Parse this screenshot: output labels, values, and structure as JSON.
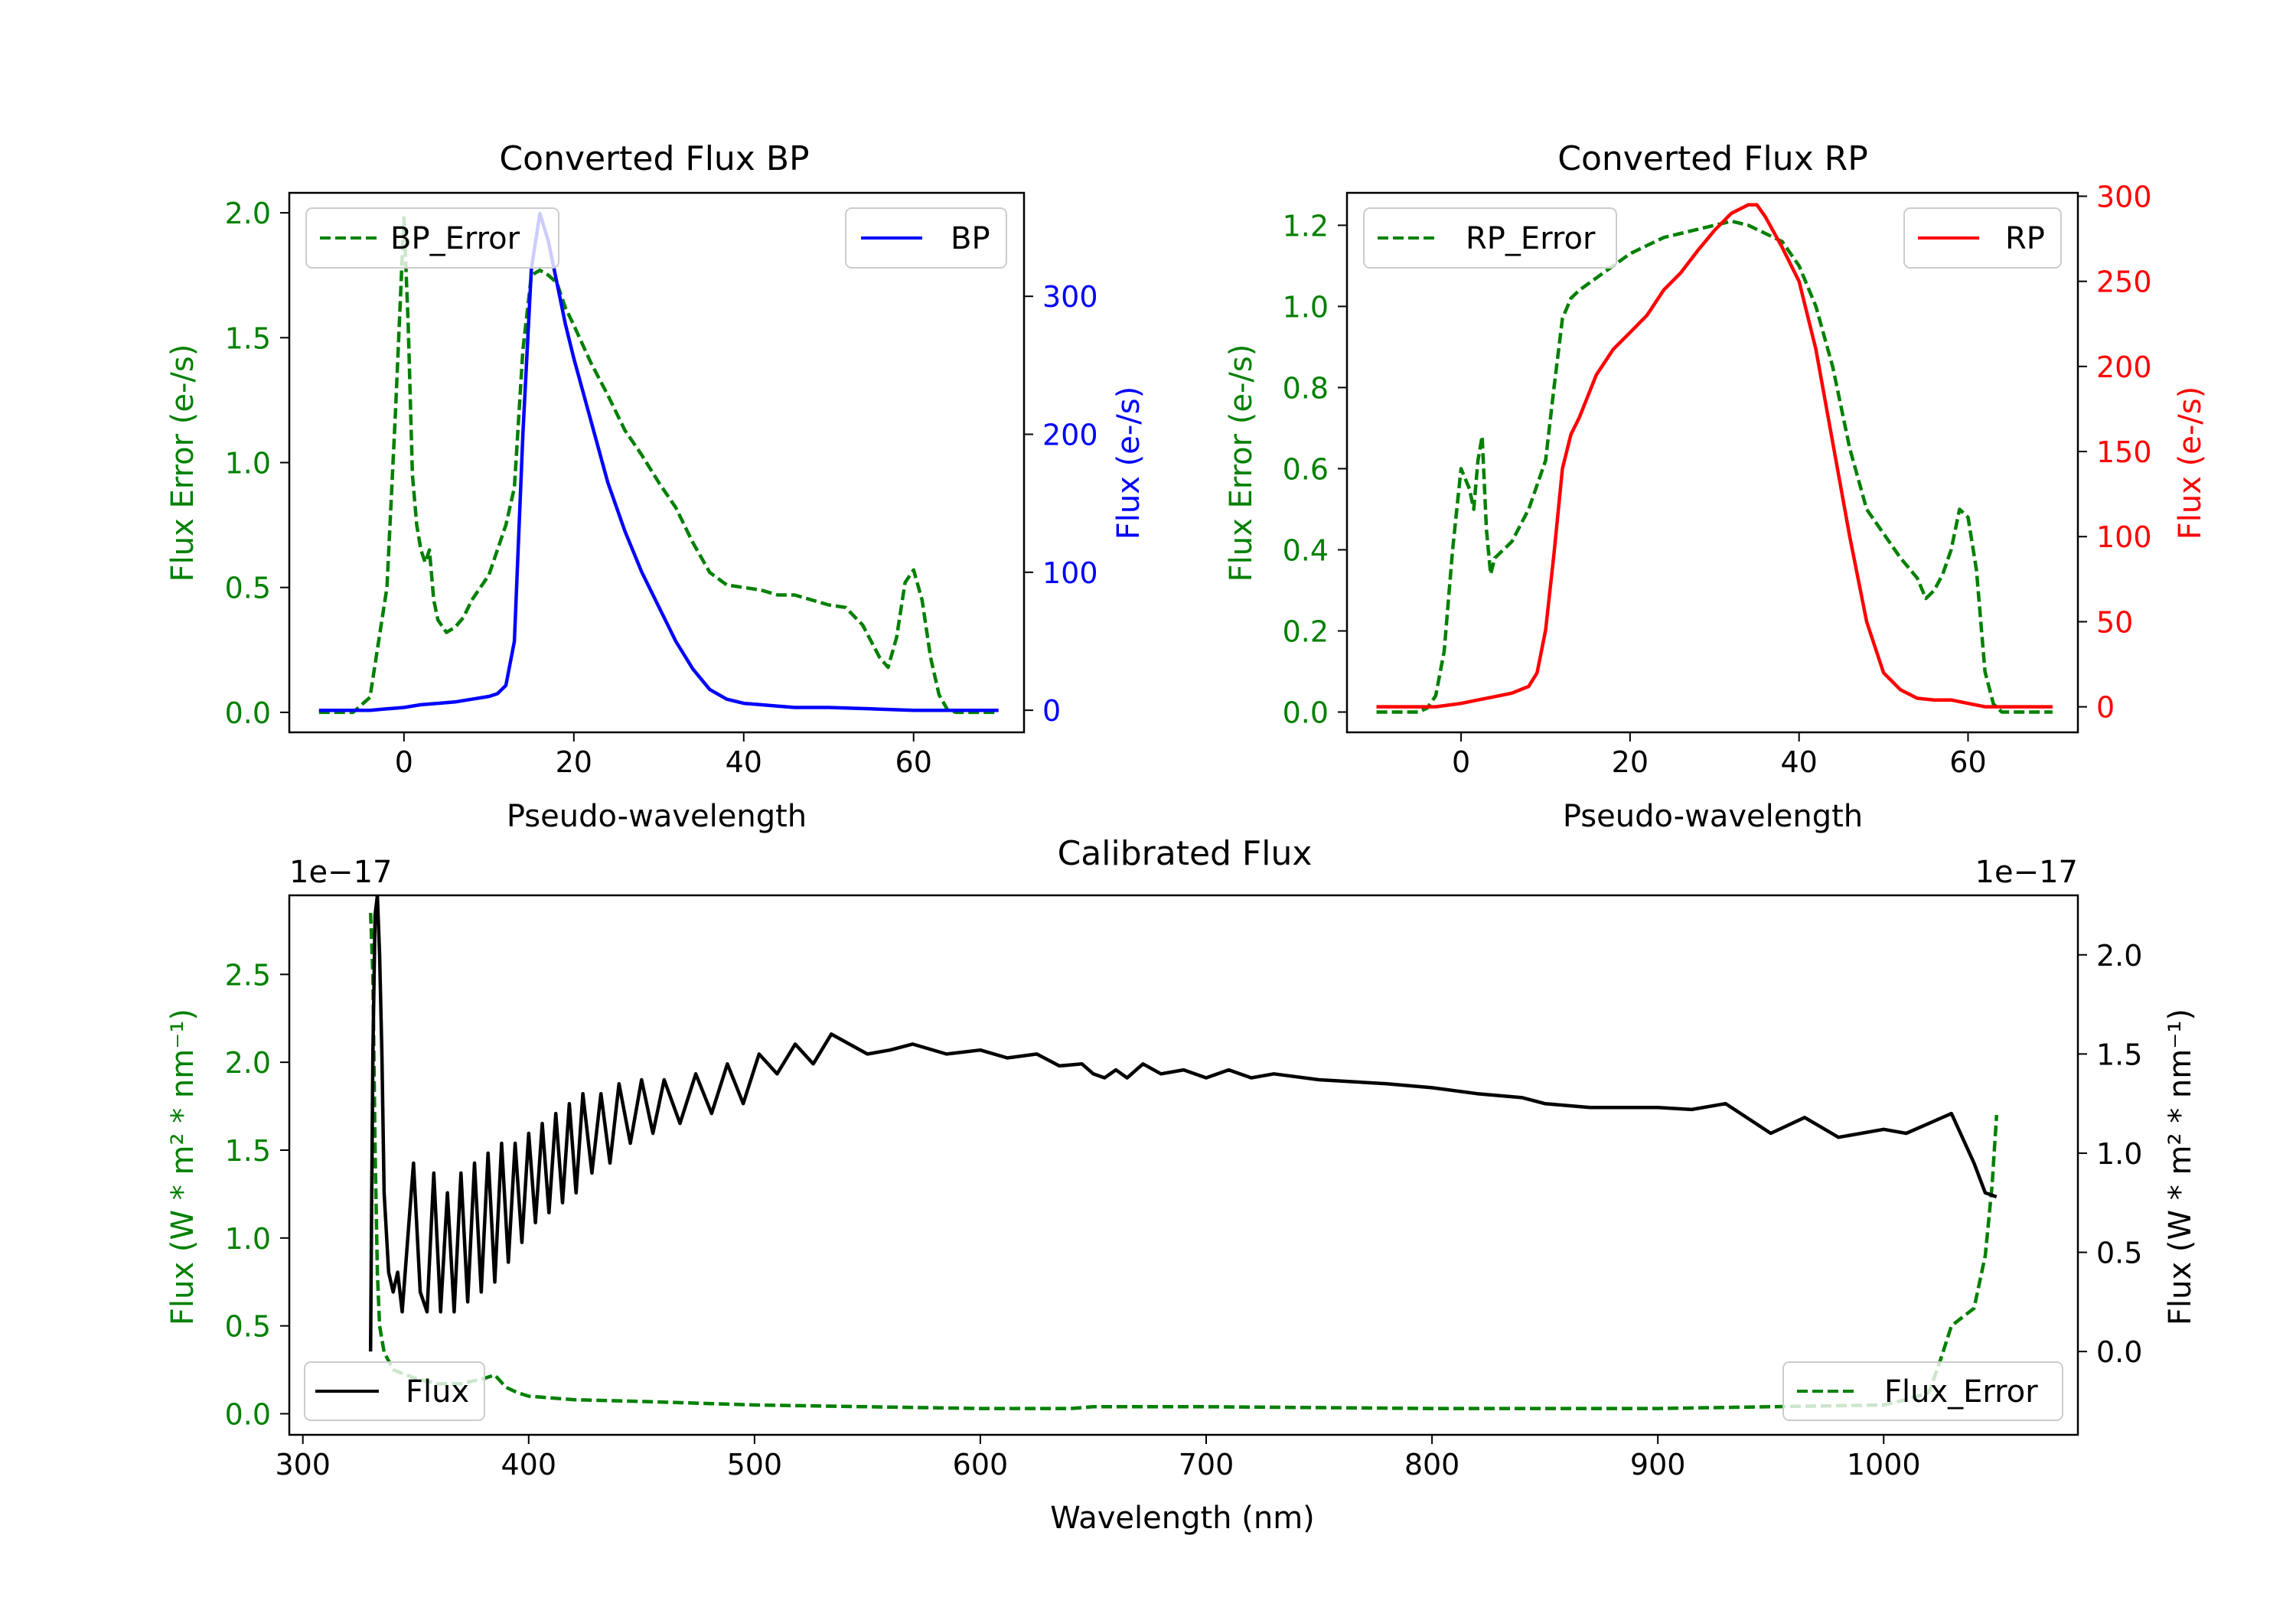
{
  "chart_data": [
    {
      "type": "line",
      "title": "Converted Flux BP",
      "xlabel": "Pseudo-wavelength",
      "ylabel_left": "Flux Error (e-/s)",
      "ylabel_right": "Flux (e-/s)",
      "xlim": [
        -13.5,
        73
      ],
      "ylim_left": [
        -0.08,
        2.08
      ],
      "ylim_right": [
        -16,
        375
      ],
      "xticks": [
        0,
        20,
        40,
        60
      ],
      "yticks_left": [
        0.0,
        0.5,
        1.0,
        1.5,
        2.0
      ],
      "yticks_right": [
        0,
        100,
        200,
        300
      ],
      "colors": {
        "left": "#008000",
        "right": "#0000ff"
      },
      "series": [
        {
          "name": "BP_Error",
          "axis": "left",
          "style": "dashed",
          "color": "#008000",
          "legend": "top-left",
          "x": [
            -10,
            -6,
            -4,
            -2,
            -1,
            0,
            0.5,
            1,
            1.5,
            2,
            2.5,
            3,
            3.5,
            4,
            5,
            6,
            7,
            8,
            9,
            10,
            11,
            12,
            13,
            14,
            15,
            16,
            17,
            18,
            19,
            20,
            22,
            24,
            26,
            28,
            30,
            32,
            34,
            36,
            38,
            40,
            42,
            44,
            46,
            48,
            50,
            52,
            54,
            56,
            57,
            58,
            59,
            60,
            61,
            62,
            63,
            64,
            65,
            70
          ],
          "y": [
            0.0,
            0.0,
            0.06,
            0.5,
            1.2,
            1.98,
            1.55,
            0.95,
            0.75,
            0.65,
            0.6,
            0.65,
            0.45,
            0.37,
            0.32,
            0.34,
            0.38,
            0.45,
            0.5,
            0.55,
            0.65,
            0.75,
            0.9,
            1.45,
            1.75,
            1.77,
            1.75,
            1.72,
            1.62,
            1.55,
            1.4,
            1.27,
            1.13,
            1.03,
            0.92,
            0.82,
            0.68,
            0.56,
            0.51,
            0.5,
            0.49,
            0.47,
            0.47,
            0.45,
            0.43,
            0.42,
            0.35,
            0.22,
            0.18,
            0.3,
            0.52,
            0.57,
            0.45,
            0.22,
            0.07,
            0.01,
            0.0,
            0.0
          ]
        },
        {
          "name": "BP",
          "axis": "right",
          "style": "solid",
          "color": "#0000ff",
          "legend": "top-right",
          "x": [
            -10,
            -4,
            -2,
            0,
            2,
            4,
            6,
            8,
            10,
            11,
            12,
            13,
            14,
            15,
            16,
            17,
            18,
            19,
            20,
            22,
            24,
            26,
            28,
            30,
            32,
            34,
            36,
            38,
            40,
            42,
            44,
            46,
            50,
            55,
            60,
            65,
            70
          ],
          "y": [
            0,
            0,
            1,
            2,
            4,
            5,
            6,
            8,
            10,
            12,
            18,
            50,
            200,
            320,
            360,
            340,
            310,
            280,
            255,
            210,
            165,
            130,
            100,
            75,
            50,
            30,
            15,
            8,
            5,
            4,
            3,
            2,
            2,
            1,
            0,
            0,
            0
          ]
        }
      ]
    },
    {
      "type": "line",
      "title": "Converted Flux RP",
      "xlabel": "Pseudo-wavelength",
      "ylabel_left": "Flux Error (e-/s)",
      "ylabel_right": "Flux (e-/s)",
      "xlim": [
        -13.5,
        73
      ],
      "ylim_left": [
        -0.05,
        1.28
      ],
      "ylim_right": [
        -15,
        302
      ],
      "xticks": [
        0,
        20,
        40,
        60
      ],
      "yticks_left": [
        0.0,
        0.2,
        0.4,
        0.6,
        0.8,
        1.0,
        1.2
      ],
      "yticks_right": [
        0,
        50,
        100,
        150,
        200,
        250,
        300
      ],
      "colors": {
        "left": "#008000",
        "right": "#ff0000"
      },
      "series": [
        {
          "name": "RP_Error",
          "axis": "left",
          "style": "dashed",
          "color": "#008000",
          "legend": "top-left",
          "x": [
            -10,
            -5,
            -4,
            -3,
            -2,
            -1,
            0,
            1,
            1.5,
            2,
            2.5,
            3,
            3.5,
            4,
            5,
            6,
            8,
            10,
            11,
            12,
            13,
            14,
            16,
            18,
            20,
            22,
            24,
            26,
            28,
            30,
            32,
            34,
            36,
            38,
            40,
            42,
            44,
            46,
            48,
            50,
            52,
            54,
            55,
            56,
            57,
            58,
            59,
            60,
            61,
            62,
            63,
            64,
            70
          ],
          "y": [
            0.0,
            0.0,
            0.01,
            0.04,
            0.15,
            0.4,
            0.6,
            0.55,
            0.5,
            0.62,
            0.68,
            0.45,
            0.34,
            0.38,
            0.4,
            0.42,
            0.5,
            0.62,
            0.8,
            0.97,
            1.02,
            1.04,
            1.07,
            1.1,
            1.13,
            1.15,
            1.17,
            1.18,
            1.19,
            1.2,
            1.21,
            1.2,
            1.18,
            1.16,
            1.1,
            1.0,
            0.85,
            0.65,
            0.5,
            0.44,
            0.38,
            0.33,
            0.28,
            0.3,
            0.34,
            0.4,
            0.5,
            0.48,
            0.35,
            0.1,
            0.02,
            0.0,
            0.0
          ]
        },
        {
          "name": "RP",
          "axis": "right",
          "style": "solid",
          "color": "#ff0000",
          "legend": "top-right",
          "x": [
            -10,
            -3,
            0,
            2,
            4,
            6,
            8,
            9,
            10,
            11,
            12,
            13,
            14,
            16,
            18,
            20,
            22,
            24,
            26,
            28,
            30,
            32,
            34,
            35,
            36,
            38,
            40,
            42,
            44,
            46,
            48,
            50,
            52,
            54,
            56,
            58,
            60,
            62,
            70
          ],
          "y": [
            0,
            0,
            2,
            4,
            6,
            8,
            12,
            20,
            45,
            90,
            140,
            160,
            170,
            195,
            210,
            220,
            230,
            245,
            255,
            268,
            280,
            290,
            295,
            295,
            288,
            270,
            250,
            210,
            155,
            100,
            50,
            20,
            10,
            5,
            4,
            4,
            2,
            0,
            0
          ]
        }
      ]
    },
    {
      "type": "line",
      "title": "Calibrated Flux",
      "xlabel": "Wavelength (nm)",
      "ylabel_left": "Flux (W * m² * nm⁻¹)",
      "ylabel_right": "Flux (W * m² * nm⁻¹)",
      "offset_left": "1e−17",
      "offset_right": "1e−17",
      "xlim": [
        294,
        1086
      ],
      "ylim_left": [
        -0.12,
        2.95
      ],
      "ylim_right": [
        -0.42,
        2.3
      ],
      "xticks": [
        300,
        400,
        500,
        600,
        700,
        800,
        900,
        1000
      ],
      "yticks_left": [
        0.0,
        0.5,
        1.0,
        1.5,
        2.0,
        2.5
      ],
      "yticks_right": [
        0.0,
        0.5,
        1.0,
        1.5,
        2.0
      ],
      "colors": {
        "left": "#008000",
        "right": "#000000"
      },
      "series": [
        {
          "name": "Flux_Error",
          "axis": "left",
          "style": "dashed",
          "color": "#008000",
          "legend": "bottom-right",
          "x": [
            330,
            331,
            332,
            333,
            334,
            336,
            340,
            350,
            360,
            370,
            380,
            385,
            390,
            395,
            400,
            420,
            450,
            500,
            550,
            600,
            640,
            650,
            700,
            800,
            900,
            950,
            1000,
            1010,
            1020,
            1025,
            1030,
            1035,
            1040,
            1045,
            1048,
            1050
          ],
          "y": [
            2.85,
            2.5,
            1.5,
            0.8,
            0.5,
            0.35,
            0.25,
            0.2,
            0.17,
            0.17,
            0.2,
            0.22,
            0.15,
            0.12,
            0.1,
            0.08,
            0.07,
            0.05,
            0.04,
            0.03,
            0.03,
            0.04,
            0.04,
            0.03,
            0.03,
            0.04,
            0.05,
            0.08,
            0.12,
            0.3,
            0.5,
            0.55,
            0.6,
            0.9,
            1.3,
            1.7
          ]
        },
        {
          "name": "Flux",
          "axis": "right",
          "style": "solid",
          "color": "#000000",
          "legend": "bottom-left",
          "x": [
            330,
            330.5,
            331,
            332,
            333,
            334,
            335,
            336,
            338,
            340,
            342,
            344,
            346,
            349,
            352,
            355,
            358,
            361,
            364,
            367,
            370,
            373,
            376,
            379,
            382,
            385,
            388,
            391,
            394,
            397,
            400,
            403,
            406,
            409,
            412,
            415,
            418,
            421,
            424,
            428,
            432,
            436,
            440,
            445,
            450,
            455,
            460,
            467,
            474,
            481,
            488,
            495,
            502,
            510,
            518,
            526,
            534,
            542,
            550,
            560,
            570,
            585,
            600,
            612,
            625,
            635,
            645,
            650,
            655,
            660,
            665,
            672,
            680,
            690,
            700,
            710,
            720,
            730,
            750,
            780,
            800,
            820,
            840,
            850,
            870,
            900,
            915,
            930,
            950,
            965,
            980,
            1000,
            1010,
            1020,
            1030,
            1040,
            1045,
            1050
          ],
          "y": [
            0.0,
            0.8,
            1.5,
            2.2,
            2.3,
            2.0,
            1.5,
            0.8,
            0.4,
            0.3,
            0.4,
            0.2,
            0.5,
            0.95,
            0.3,
            0.2,
            0.9,
            0.2,
            0.8,
            0.2,
            0.9,
            0.25,
            0.95,
            0.3,
            1.0,
            0.35,
            1.05,
            0.45,
            1.05,
            0.55,
            1.1,
            0.65,
            1.15,
            0.7,
            1.2,
            0.75,
            1.25,
            0.8,
            1.3,
            0.9,
            1.3,
            0.95,
            1.35,
            1.05,
            1.37,
            1.1,
            1.37,
            1.15,
            1.4,
            1.2,
            1.45,
            1.25,
            1.5,
            1.4,
            1.55,
            1.45,
            1.6,
            1.55,
            1.5,
            1.52,
            1.55,
            1.5,
            1.52,
            1.48,
            1.5,
            1.44,
            1.45,
            1.4,
            1.38,
            1.42,
            1.38,
            1.45,
            1.4,
            1.42,
            1.38,
            1.42,
            1.38,
            1.4,
            1.37,
            1.35,
            1.33,
            1.3,
            1.28,
            1.25,
            1.23,
            1.23,
            1.22,
            1.25,
            1.1,
            1.18,
            1.08,
            1.12,
            1.1,
            1.15,
            1.2,
            0.95,
            0.8,
            0.78
          ]
        }
      ]
    }
  ]
}
